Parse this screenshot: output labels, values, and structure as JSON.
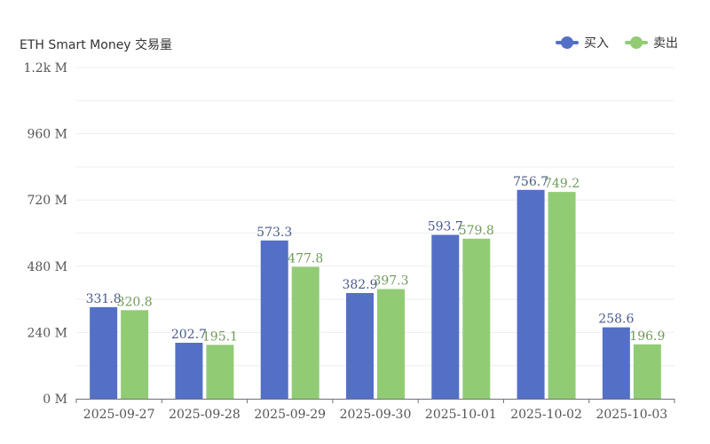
{
  "chart_data": {
    "type": "bar",
    "title": "ETH Smart Money 交易量",
    "categories": [
      "2025-09-27",
      "2025-09-28",
      "2025-09-29",
      "2025-09-30",
      "2025-10-01",
      "2025-10-02",
      "2025-10-03"
    ],
    "series": [
      {
        "name": "买入",
        "color": "#5470c6",
        "values": [
          331.8,
          202.7,
          573.3,
          382.9,
          593.7,
          756.7,
          258.6
        ]
      },
      {
        "name": "卖出",
        "color": "#91cc75",
        "values": [
          320.8,
          195.1,
          477.8,
          397.3,
          579.8,
          749.2,
          196.9
        ]
      }
    ],
    "ylim": [
      0,
      1200
    ],
    "yticks": [
      0,
      240,
      480,
      720,
      960,
      1200
    ],
    "ytick_labels": [
      "0 M",
      "240 M",
      "480 M",
      "720 M",
      "960 M",
      "1.2k M"
    ],
    "grid": true,
    "legend_position": "top-right"
  }
}
